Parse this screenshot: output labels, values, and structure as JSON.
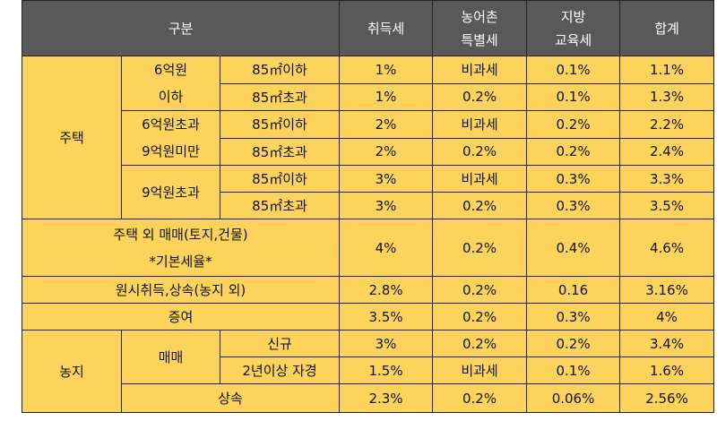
{
  "header": {
    "category": "구분",
    "acquisition": "취득세",
    "rural": "농어촌\n특별세",
    "rural_line1": "농어촌",
    "rural_line2": "특별세",
    "local_line1": "지방",
    "local_line2": "교육세",
    "total": "합계"
  },
  "housing": {
    "label": "주택",
    "g1_line1": "6억원",
    "g1_line2": "이하",
    "g2_line1": "6억원초과",
    "g2_line2": "9억원미만",
    "g3": "9억원초과",
    "rows": [
      {
        "size": "85㎡이하",
        "acq": "1%",
        "rural": "비과세",
        "local": "0.1%",
        "total": "1.1%"
      },
      {
        "size": "85㎡초과",
        "acq": "1%",
        "rural": "0.2%",
        "local": "0.1%",
        "total": "1.3%"
      },
      {
        "size": "85㎡이하",
        "acq": "2%",
        "rural": "비과세",
        "local": "0.2%",
        "total": "2.2%"
      },
      {
        "size": "85㎡초과",
        "acq": "2%",
        "rural": "0.2%",
        "local": "0.2%",
        "total": "2.4%"
      },
      {
        "size": "85㎡이하",
        "acq": "3%",
        "rural": "비과세",
        "local": "0.3%",
        "total": "3.3%"
      },
      {
        "size": "85㎡초과",
        "acq": "3%",
        "rural": "0.2%",
        "local": "0.3%",
        "total": "3.5%"
      }
    ]
  },
  "other_trade": {
    "line1": "주택 외 매매(토지,건물)",
    "line2": "*기본세율*",
    "acq": "4%",
    "rural": "0.2%",
    "local": "0.4%",
    "total": "4.6%"
  },
  "inheritance": {
    "label": "원시취득,상속(농지 외)",
    "acq": "2.8%",
    "rural": "0.2%",
    "local": "0.16",
    "total": "3.16%"
  },
  "gift": {
    "label": "증여",
    "acq": "3.5%",
    "rural": "0.2%",
    "local": "0.3%",
    "total": "4%"
  },
  "farmland": {
    "label": "농지",
    "trade_label": "매매",
    "rows": [
      {
        "type": "신규",
        "acq": "3%",
        "rural": "0.2%",
        "local": "0.2%",
        "total": "3.4%"
      },
      {
        "type": "2년이상 자경",
        "acq": "1.5%",
        "rural": "비과세",
        "local": "0.1%",
        "total": "1.6%"
      }
    ],
    "inherit": {
      "label": "상속",
      "acq": "2.3%",
      "rural": "0.2%",
      "local": "0.06%",
      "total": "2.56%"
    }
  }
}
